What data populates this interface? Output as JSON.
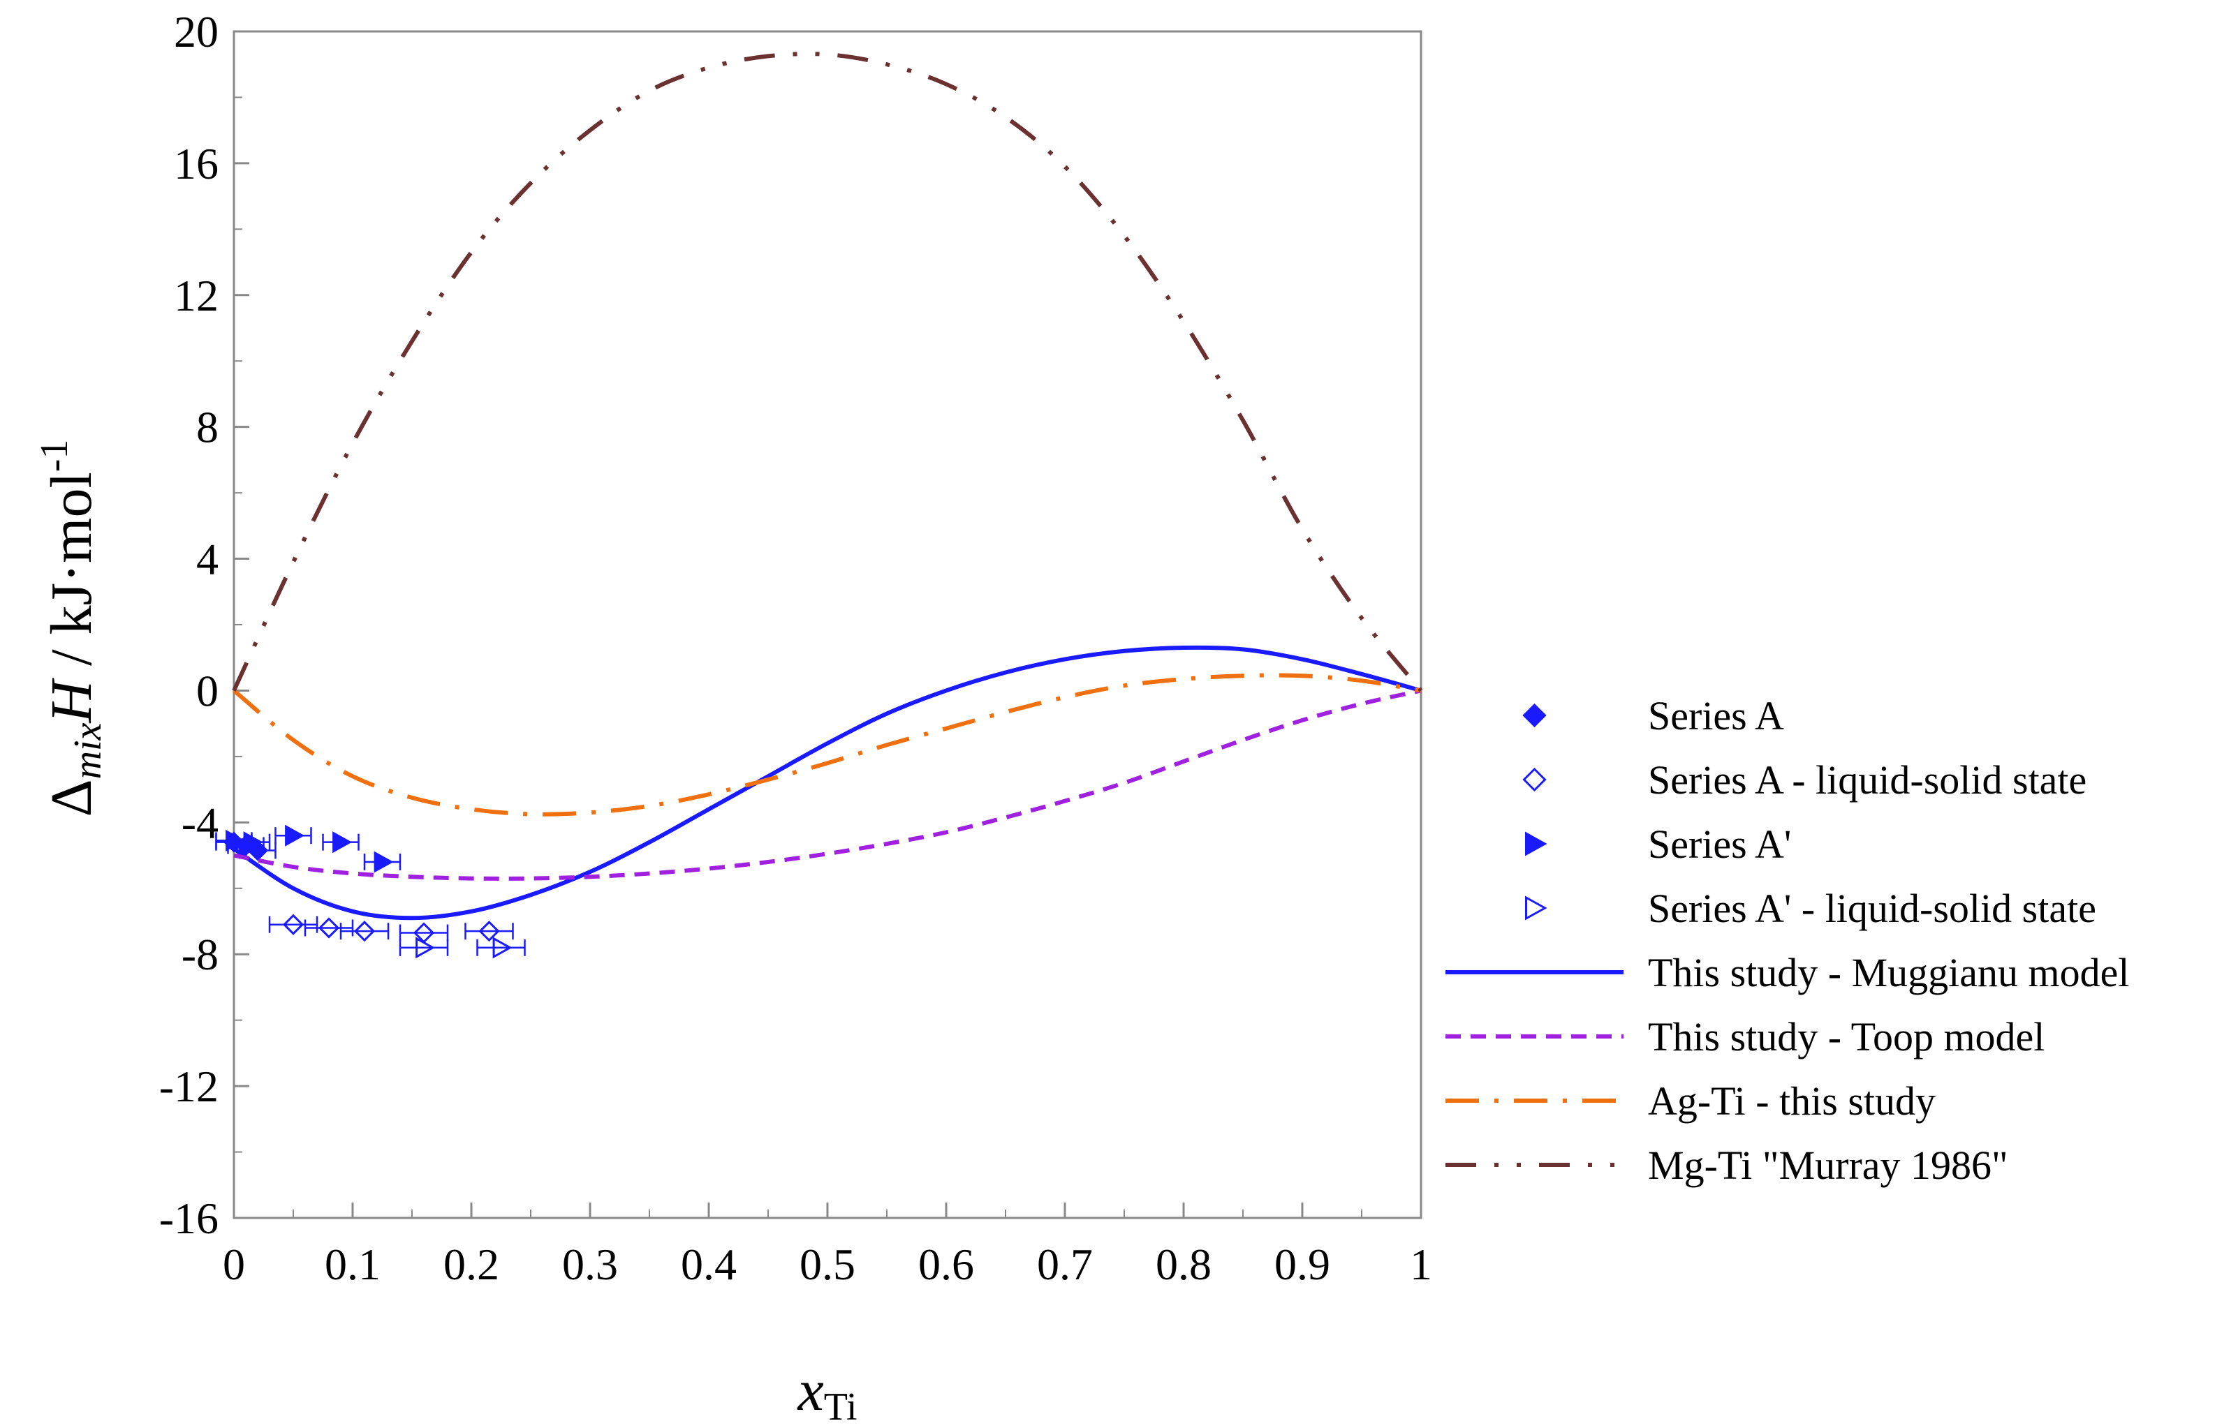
{
  "chart_data": {
    "type": "line",
    "title": "",
    "xlabel": {
      "main": "x",
      "sub": "Ti"
    },
    "ylabel": {
      "prefix": "Δ",
      "sub": "mix",
      "italic": "H",
      "unit": " / kJ·mol",
      "sup": "-1"
    },
    "xlim": [
      0,
      1
    ],
    "ylim": [
      -16,
      20
    ],
    "xticks": [
      0,
      0.1,
      0.2,
      0.3,
      0.4,
      0.5,
      0.6,
      0.7,
      0.8,
      0.9,
      1
    ],
    "xtick_labels": [
      "0",
      "0.1",
      "0.2",
      "0.3",
      "0.4",
      "0.5",
      "0.6",
      "0.7",
      "0.8",
      "0.9",
      "1"
    ],
    "yticks": [
      20,
      16,
      12,
      8,
      4,
      0,
      -4,
      -8,
      -12,
      -16
    ],
    "ytick_labels": [
      "20",
      "16",
      "12",
      "8",
      "4",
      "0",
      "-4",
      "-8",
      "-12",
      "-16"
    ],
    "grid": false,
    "legend_position": "right",
    "series": [
      {
        "name": "Series A",
        "kind": "points",
        "marker": "filled-diamond",
        "color": "#1a1aff",
        "points": [
          [
            0.0,
            -4.6
          ],
          [
            0.01,
            -4.7
          ],
          [
            0.02,
            -4.85
          ]
        ],
        "xerr": 0.015
      },
      {
        "name": "Series A - liquid-solid state",
        "kind": "points",
        "marker": "open-diamond",
        "color": "#1a1aff",
        "points": [
          [
            0.05,
            -7.1
          ],
          [
            0.08,
            -7.2
          ],
          [
            0.11,
            -7.3
          ],
          [
            0.16,
            -7.35
          ],
          [
            0.215,
            -7.3
          ]
        ],
        "xerr": 0.02
      },
      {
        "name": "Series A'",
        "kind": "points",
        "marker": "filled-triangle",
        "color": "#1a1aff",
        "points": [
          [
            0.0,
            -4.55
          ],
          [
            0.015,
            -4.6
          ],
          [
            0.05,
            -4.4
          ],
          [
            0.09,
            -4.6
          ],
          [
            0.125,
            -5.2
          ]
        ],
        "xerr": 0.015
      },
      {
        "name": "Series A' - liquid-solid state",
        "kind": "points",
        "marker": "open-triangle",
        "color": "#1a1aff",
        "points": [
          [
            0.16,
            -7.8
          ],
          [
            0.225,
            -7.8
          ]
        ],
        "xerr": 0.02
      },
      {
        "name": "This study - Muggianu model",
        "kind": "line",
        "style": "solid",
        "color": "#1a1aff",
        "x": [
          0,
          0.05,
          0.1,
          0.15,
          0.2,
          0.25,
          0.3,
          0.35,
          0.4,
          0.45,
          0.5,
          0.55,
          0.6,
          0.65,
          0.7,
          0.75,
          0.8,
          0.85,
          0.9,
          0.95,
          1
        ],
        "y": [
          -4.8,
          -6.0,
          -6.7,
          -6.9,
          -6.7,
          -6.2,
          -5.5,
          -4.6,
          -3.6,
          -2.6,
          -1.6,
          -0.7,
          0.0,
          0.55,
          0.95,
          1.2,
          1.3,
          1.25,
          0.95,
          0.5,
          0
        ]
      },
      {
        "name": "This study - Toop model",
        "kind": "line",
        "style": "dashed",
        "color": "#a020e0",
        "x": [
          0,
          0.05,
          0.1,
          0.15,
          0.2,
          0.25,
          0.3,
          0.35,
          0.4,
          0.45,
          0.5,
          0.55,
          0.6,
          0.65,
          0.7,
          0.75,
          0.8,
          0.85,
          0.9,
          0.95,
          1
        ],
        "y": [
          -5.0,
          -5.35,
          -5.55,
          -5.65,
          -5.7,
          -5.7,
          -5.65,
          -5.55,
          -5.4,
          -5.2,
          -4.95,
          -4.65,
          -4.3,
          -3.85,
          -3.35,
          -2.8,
          -2.15,
          -1.5,
          -0.9,
          -0.4,
          0
        ]
      },
      {
        "name": "Ag-Ti - this study",
        "kind": "line",
        "style": "dash-dot",
        "color": "#f07010",
        "x": [
          0,
          0.05,
          0.1,
          0.15,
          0.2,
          0.25,
          0.3,
          0.35,
          0.4,
          0.45,
          0.5,
          0.55,
          0.6,
          0.65,
          0.7,
          0.75,
          0.8,
          0.85,
          0.9,
          0.95,
          1
        ],
        "y": [
          0,
          -1.5,
          -2.6,
          -3.25,
          -3.6,
          -3.75,
          -3.7,
          -3.5,
          -3.15,
          -2.7,
          -2.2,
          -1.65,
          -1.15,
          -0.65,
          -0.2,
          0.15,
          0.35,
          0.45,
          0.45,
          0.3,
          0
        ]
      },
      {
        "name": "Mg-Ti \"Murray 1986\"",
        "kind": "line",
        "style": "dash-dot-dot",
        "color": "#6b3030",
        "x": [
          0,
          0.05,
          0.1,
          0.15,
          0.2,
          0.25,
          0.3,
          0.35,
          0.4,
          0.45,
          0.5,
          0.55,
          0.6,
          0.65,
          0.7,
          0.75,
          0.8,
          0.85,
          0.9,
          0.95,
          1
        ],
        "y": [
          0,
          3.9,
          7.5,
          10.6,
          13.3,
          15.4,
          17.0,
          18.2,
          18.9,
          19.25,
          19.3,
          19.0,
          18.4,
          17.4,
          15.9,
          13.8,
          11.2,
          8.2,
          4.9,
          2.2,
          0
        ]
      }
    ]
  }
}
